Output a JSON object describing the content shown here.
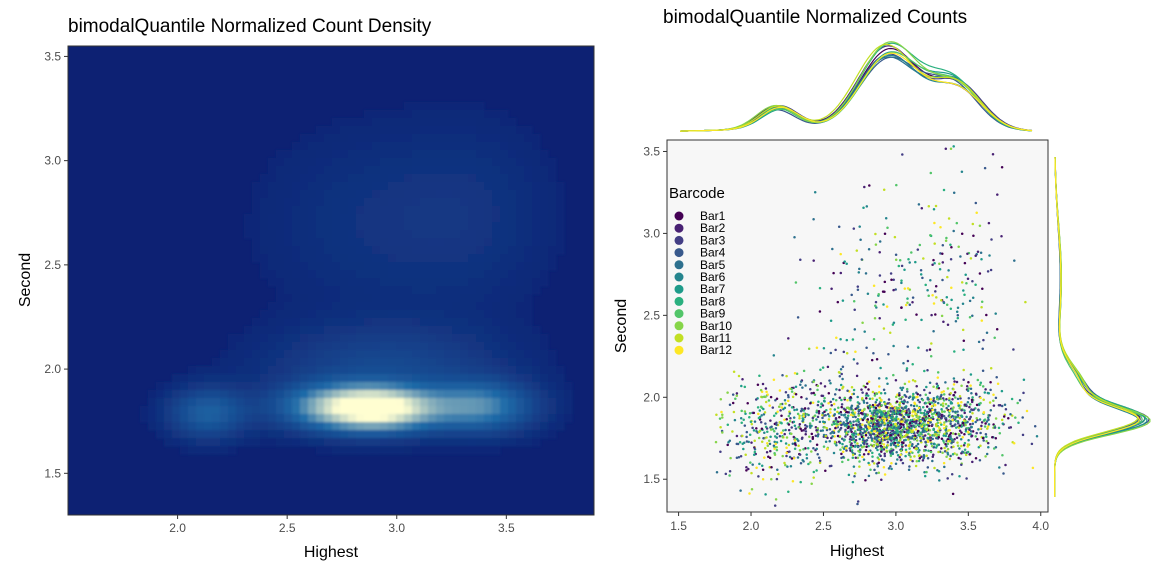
{
  "chart_data": [
    {
      "type": "heatmap",
      "title": "bimodalQuantile Normalized Count Density",
      "xlabel": "Highest",
      "ylabel": "Second",
      "xlim": [
        1.5,
        3.9
      ],
      "ylim": [
        1.3,
        3.55
      ],
      "x_ticks": [
        "2.0",
        "2.5",
        "3.0",
        "3.5"
      ],
      "y_ticks": [
        "1.5",
        "2.0",
        "2.5",
        "3.0",
        "3.5"
      ],
      "density_peaks": [
        {
          "x": 2.93,
          "y": 1.81,
          "sx": 0.18,
          "sy": 0.07,
          "w": 1.0
        },
        {
          "x": 2.7,
          "y": 1.82,
          "sx": 0.18,
          "sy": 0.075,
          "w": 0.45
        },
        {
          "x": 3.38,
          "y": 1.82,
          "sx": 0.16,
          "sy": 0.08,
          "w": 0.5
        },
        {
          "x": 2.14,
          "y": 1.79,
          "sx": 0.12,
          "sy": 0.08,
          "w": 0.32
        },
        {
          "x": 2.95,
          "y": 2.02,
          "sx": 0.35,
          "sy": 0.13,
          "w": 0.16
        },
        {
          "x": 2.9,
          "y": 2.7,
          "sx": 0.35,
          "sy": 0.3,
          "w": 0.06
        },
        {
          "x": 3.35,
          "y": 2.75,
          "sx": 0.25,
          "sy": 0.3,
          "w": 0.05
        }
      ],
      "colors": {
        "low": "#0d2173",
        "mid": "#1f6aa8",
        "high": "#fffed1"
      },
      "grid": false
    },
    {
      "type": "scatter",
      "title": "bimodalQuantile Normalized Counts",
      "xlabel": "Highest",
      "ylabel": "Second",
      "xlim": [
        1.42,
        4.05
      ],
      "ylim": [
        1.3,
        3.57
      ],
      "x_ticks": [
        "1.5",
        "2.0",
        "2.5",
        "3.0",
        "3.5",
        "4.0"
      ],
      "y_ticks": [
        "1.5",
        "2.0",
        "2.5",
        "3.0",
        "3.5"
      ],
      "legend": {
        "title": "Barcode",
        "placement": "top-left",
        "entries": [
          "Bar1",
          "Bar2",
          "Bar3",
          "Bar4",
          "Bar5",
          "Bar6",
          "Bar7",
          "Bar8",
          "Bar9",
          "Bar10",
          "Bar11",
          "Bar12"
        ],
        "colors": [
          "#440154",
          "#482173",
          "#433e85",
          "#38598c",
          "#2d708e",
          "#25858e",
          "#1e9b8a",
          "#2ab07f",
          "#52c569",
          "#86d549",
          "#c2df23",
          "#fde725"
        ]
      },
      "clusters": [
        {
          "x": 2.93,
          "y": 1.82,
          "sx": 0.2,
          "sy": 0.1,
          "n": 1100
        },
        {
          "x": 3.38,
          "y": 1.85,
          "sx": 0.2,
          "sy": 0.13,
          "n": 600
        },
        {
          "x": 2.15,
          "y": 1.8,
          "sx": 0.18,
          "sy": 0.15,
          "n": 320
        },
        {
          "x": 2.6,
          "y": 1.88,
          "sx": 0.22,
          "sy": 0.17,
          "n": 280
        },
        {
          "x": 2.95,
          "y": 2.7,
          "sx": 0.3,
          "sy": 0.3,
          "n": 160
        },
        {
          "x": 3.4,
          "y": 2.8,
          "sx": 0.22,
          "sy": 0.35,
          "n": 110
        }
      ],
      "marginal_x_peaks": [
        {
          "x": 2.17,
          "s": 0.13,
          "w": 0.28
        },
        {
          "x": 2.92,
          "s": 0.2,
          "w": 1.0
        },
        {
          "x": 3.38,
          "s": 0.17,
          "w": 0.55
        }
      ],
      "marginal_y_peaks": [
        {
          "y": 1.82,
          "s": 0.085,
          "w": 1.0
        },
        {
          "y": 2.02,
          "s": 0.15,
          "w": 0.35
        },
        {
          "y": 2.75,
          "s": 0.35,
          "w": 0.08
        }
      ],
      "panel_background": "#f7f7f7",
      "grid": false
    }
  ]
}
